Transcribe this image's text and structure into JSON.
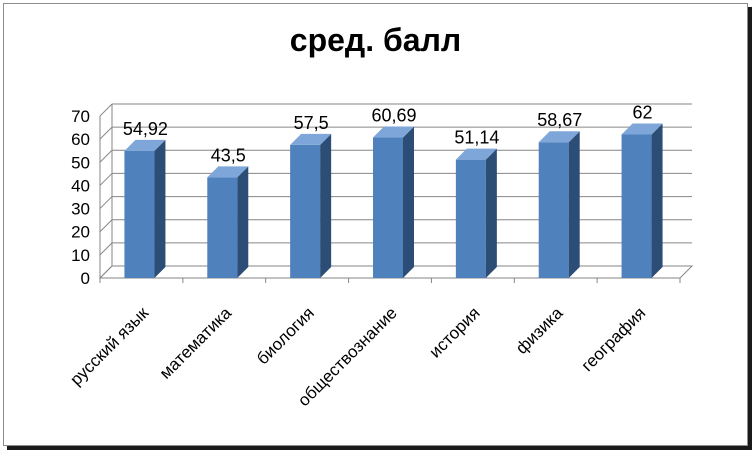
{
  "chart_data": {
    "type": "bar",
    "title": "сред. балл",
    "categories": [
      "русский язык",
      "математика",
      "биология",
      "обществознание",
      "история",
      "физика",
      "география"
    ],
    "values": [
      54.92,
      43.5,
      57.5,
      60.69,
      51.14,
      58.67,
      62
    ],
    "data_labels": [
      "54,92",
      "43,5",
      "57,5",
      "60,69",
      "51,14",
      "58,67",
      "62"
    ],
    "ylim": [
      0,
      70
    ],
    "yticks": [
      0,
      10,
      20,
      30,
      40,
      50,
      60,
      70
    ],
    "ytick_labels": [
      "0",
      "10",
      "20",
      "30",
      "40",
      "50",
      "60",
      "70"
    ],
    "grid": true,
    "legend": "none",
    "style": "3d-column",
    "colors": {
      "bar_front": "#4f81bd",
      "bar_side": "#2c4d75",
      "bar_top": "#7ea6d8"
    }
  }
}
